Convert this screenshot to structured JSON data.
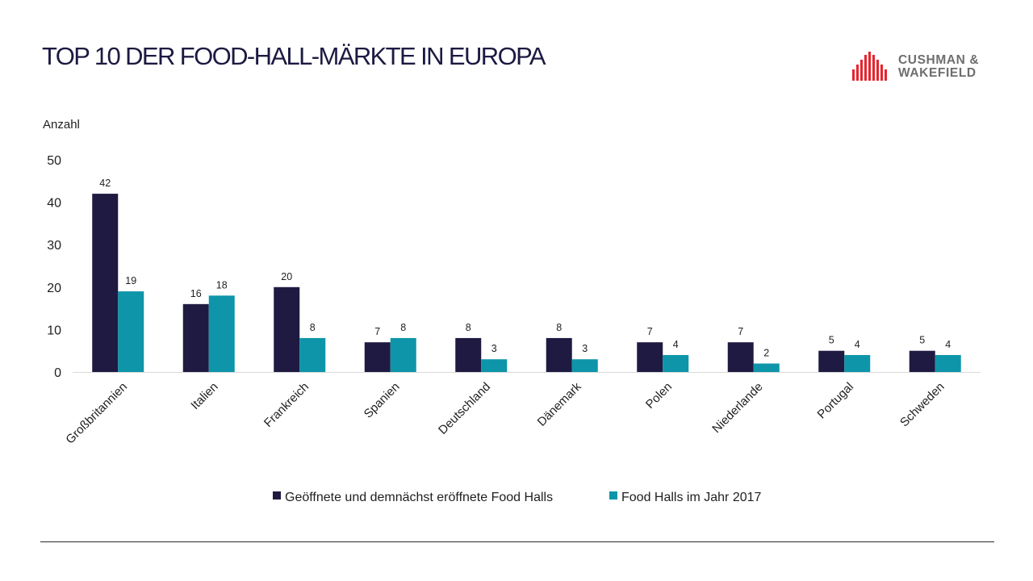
{
  "slide": {
    "title": "TOP 10 DER FOOD-HALL-MÄRKTE IN EUROPA"
  },
  "logo": {
    "line1": "CUSHMAN &",
    "line2": "WAKEFIELD",
    "color": "#e4262f"
  },
  "chart_data": {
    "type": "bar",
    "ylabel": "Anzahl",
    "ylim": [
      0,
      50
    ],
    "yticks": [
      0,
      10,
      20,
      30,
      40,
      50
    ],
    "grid": false,
    "legend_position": "bottom",
    "categories": [
      "Großbritannien",
      "Italien",
      "Frankreich",
      "Spanien",
      "Deutschland",
      "Dänemark",
      "Polen",
      "Niederlande",
      "Portugal",
      "Schweden"
    ],
    "series": [
      {
        "name": "Geöffnete und demnächst eröffnete Food Halls",
        "color": "#1e1a41",
        "values": [
          42,
          16,
          20,
          7,
          8,
          8,
          7,
          7,
          5,
          5
        ]
      },
      {
        "name": "Food Halls im Jahr 2017",
        "color": "#0e95aa",
        "values": [
          19,
          18,
          8,
          8,
          3,
          3,
          4,
          2,
          4,
          4
        ]
      }
    ]
  }
}
